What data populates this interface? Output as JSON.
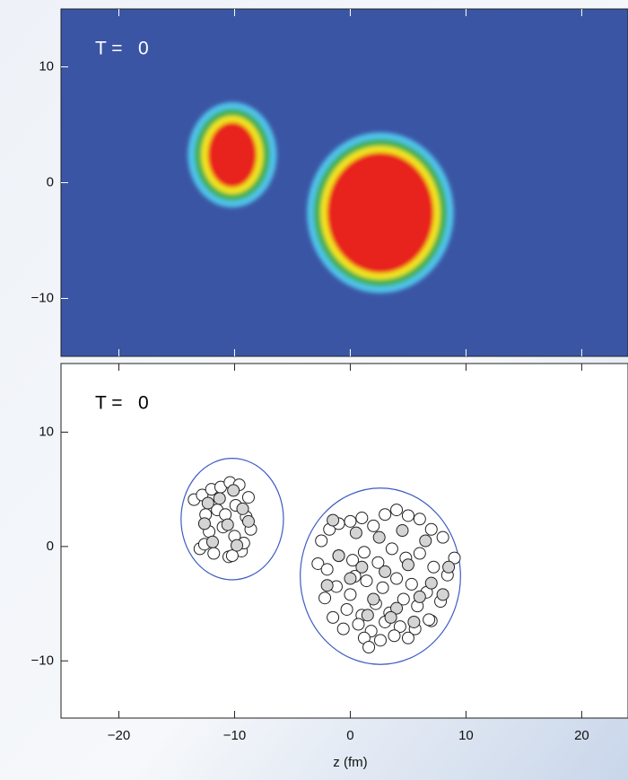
{
  "chart_data": [
    {
      "type": "heatmap",
      "label": "T =   0",
      "background": "#3b55a5",
      "label_color": "#ffffff",
      "xlim": [
        -25,
        24
      ],
      "ylim": [
        -15,
        15
      ],
      "xticks": [
        {
          "value": -20,
          "label": "−20"
        },
        {
          "value": -10,
          "label": "−10"
        },
        0,
        10,
        20
      ],
      "yticks": [
        {
          "value": -10,
          "label": "−10"
        },
        0,
        10
      ],
      "levels": [
        "#4fc3ea",
        "#43b04e",
        "#f2e41c",
        "#e8221e"
      ],
      "blobs": [
        {
          "center": [
            -10.2,
            2.4
          ],
          "radii": [
            2.1,
            2.8
          ]
        },
        {
          "center": [
            2.6,
            -2.6
          ],
          "radii": [
            4.6,
            5.2
          ]
        }
      ]
    },
    {
      "type": "scatter",
      "label": "T =   0",
      "background": "#ffffff",
      "label_color": "#000000",
      "outline": "#3c5cc0",
      "xlabel": "z (fm)",
      "xlim": [
        -25,
        24
      ],
      "ylim": [
        -15,
        16
      ],
      "xticks": [
        {
          "value": -20,
          "label": "−20"
        },
        {
          "value": -10,
          "label": "−10"
        },
        0,
        10,
        20
      ],
      "yticks": [
        {
          "value": -10,
          "label": "−10"
        },
        0,
        10
      ],
      "series": [
        {
          "color": "#ffffff",
          "x": [
            -13.5,
            -12.8,
            -12,
            -11.2,
            -10.4,
            -9.6,
            -8.8,
            -12.5,
            -11.5,
            -10.8,
            -9.9,
            -9,
            -12.2,
            -11,
            -10,
            -8.6,
            -13,
            -11.8,
            -10.5,
            -9.4,
            -12.6,
            -10.2,
            -9.2,
            -2.5,
            -1.8,
            -1,
            0,
            1,
            2,
            3,
            4,
            5,
            6,
            7,
            8,
            9,
            -2.8,
            -2,
            -1,
            0.2,
            1.2,
            2.4,
            3.6,
            4.8,
            6,
            7.2,
            8.4,
            -2.2,
            -1.2,
            0,
            1.4,
            2.8,
            4,
            5.3,
            6.6,
            7.8,
            -1.5,
            -0.3,
            1,
            2.2,
            3.4,
            4.6,
            5.8,
            7,
            -0.6,
            0.7,
            1.8,
            3,
            4.3,
            5.6,
            6.8,
            1.2,
            1.6,
            2.6,
            3.8,
            5,
            0.4
          ],
          "y": [
            4.1,
            4.5,
            5,
            5.2,
            5.6,
            5.4,
            4.3,
            2.8,
            3.2,
            2.8,
            3.6,
            2.6,
            1.3,
            1.7,
            0.9,
            1.5,
            -0.2,
            -0.6,
            -0.9,
            -0.4,
            0.2,
            -0.8,
            0.3,
            0.5,
            1.5,
            2,
            2.2,
            2.5,
            1.8,
            2.8,
            3.2,
            2.7,
            2.4,
            1.5,
            0.8,
            -1,
            -1.5,
            -2,
            -0.8,
            -1.2,
            -0.5,
            -1.4,
            -0.2,
            -1,
            -0.6,
            -1.8,
            -2.5,
            -4.5,
            -3.5,
            -4.2,
            -3,
            -3.6,
            -2.8,
            -3.3,
            -4,
            -4.8,
            -6.2,
            -5.5,
            -6,
            -5,
            -5.8,
            -4.6,
            -5.2,
            -6.5,
            -7.2,
            -6.8,
            -7.4,
            -6.6,
            -7,
            -7.2,
            -6.4,
            -8,
            -8.8,
            -8.2,
            -7.8,
            -8,
            -2.6
          ]
        },
        {
          "color": "#d4d4d4",
          "x": [
            -12.6,
            -11.3,
            -10.1,
            -9.3,
            -11.9,
            -10.6,
            -9.8,
            -12.3,
            -8.8,
            -1.5,
            0.5,
            2.5,
            4.5,
            6.5,
            8.5,
            -1,
            1,
            3,
            5,
            7,
            -2,
            0,
            2,
            4,
            6,
            8,
            1.5,
            3.5,
            5.5
          ],
          "y": [
            2,
            4.2,
            4.9,
            3.3,
            0.4,
            1.9,
            0.1,
            3.8,
            2.2,
            2.3,
            1.2,
            0.8,
            1.4,
            0.5,
            -1.8,
            -0.8,
            -1.8,
            -2.2,
            -1.6,
            -3.2,
            -3.4,
            -2.8,
            -4.6,
            -5.4,
            -4.4,
            -4.2,
            -6,
            -6.2,
            -6.6
          ]
        }
      ]
    }
  ]
}
